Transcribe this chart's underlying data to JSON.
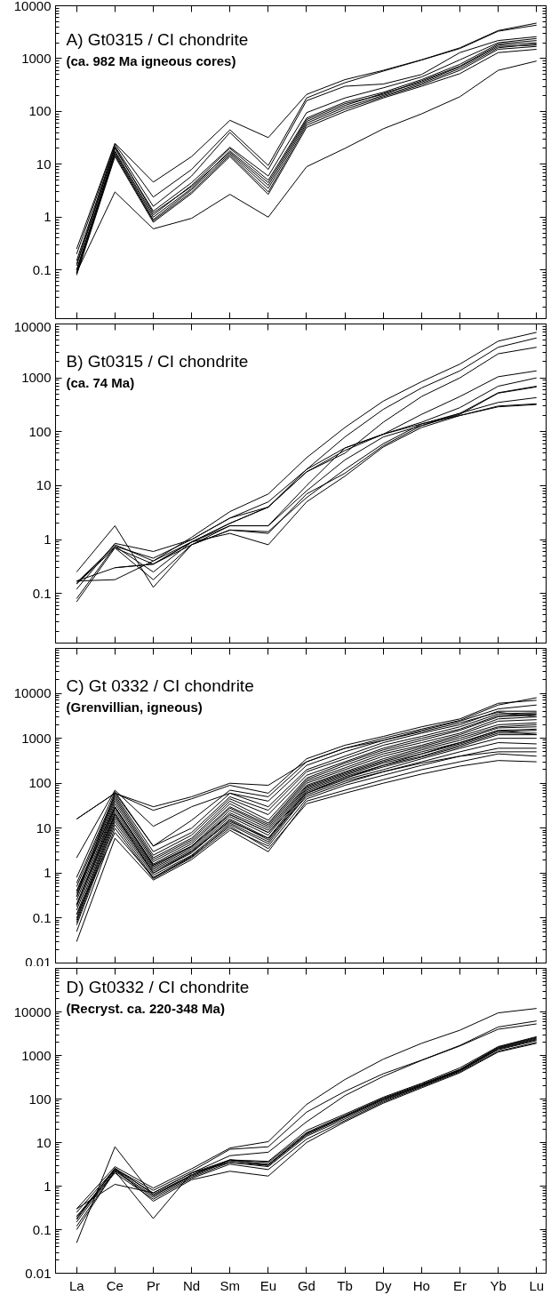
{
  "chart_data": [
    {
      "type": "line",
      "title": "A) Gt0315 / CI chondrite",
      "subtitle": "(ca. 982 Ma igneous cores)",
      "categories": [
        null,
        null,
        null,
        null,
        null,
        null,
        null,
        null,
        null,
        null,
        null,
        null,
        null
      ],
      "log": true,
      "ylim": [
        0.012,
        10000
      ],
      "yticks": [
        0.1,
        1,
        10,
        100,
        1000,
        10000
      ],
      "tick_labels": "y",
      "marker": "none",
      "line_style": "solid",
      "grid": false,
      "series": [
        {
          "color": "#000000",
          "values": [
            0.25,
            25,
            4.6,
            14,
            68,
            32,
            210,
            400,
            600,
            950,
            1600,
            3400,
            4700
          ]
        },
        {
          "color": "#000000",
          "values": [
            0.2,
            24,
            2.4,
            8,
            45,
            9.5,
            180,
            350,
            580,
            940,
            1550,
            3300,
            4300
          ]
        },
        {
          "color": "#000000",
          "values": [
            0.15,
            22,
            1.6,
            6,
            40,
            8,
            160,
            300,
            330,
            500,
            1300,
            2200,
            2600
          ]
        },
        {
          "color": "#000000",
          "values": [
            0.12,
            20,
            1.3,
            4.5,
            21,
            6,
            95,
            180,
            280,
            450,
            950,
            2000,
            2400
          ]
        },
        {
          "color": "#000000",
          "values": [
            0.1,
            18,
            1.1,
            4,
            20,
            5,
            75,
            150,
            230,
            400,
            780,
            1900,
            2200
          ]
        },
        {
          "color": "#000000",
          "values": [
            0.1,
            17,
            1.0,
            3.5,
            18,
            4.5,
            70,
            140,
            210,
            380,
            720,
            1800,
            2000
          ]
        },
        {
          "color": "#000000",
          "values": [
            0.09,
            16,
            0.9,
            3.3,
            16,
            3.5,
            60,
            120,
            200,
            340,
            650,
            1600,
            1900
          ]
        },
        {
          "color": "#000000",
          "values": [
            0.085,
            15,
            0.85,
            3,
            15,
            3,
            55,
            110,
            190,
            320,
            600,
            1500,
            1700
          ]
        },
        {
          "color": "#000000",
          "values": [
            0.08,
            14,
            0.8,
            2.8,
            14,
            2.7,
            50,
            100,
            180,
            300,
            520,
            1300,
            1500
          ]
        },
        {
          "color": "#000000",
          "values": [
            0.13,
            21,
            1.2,
            3.8,
            17,
            4,
            65,
            130,
            220,
            360,
            700,
            1700,
            1800
          ]
        },
        {
          "color": "#000000",
          "values": [
            0.09,
            3,
            0.6,
            0.95,
            2.7,
            1.0,
            9,
            20,
            47,
            90,
            190,
            600,
            900
          ]
        }
      ]
    },
    {
      "type": "line",
      "title": "B) Gt0315 / CI chondrite",
      "subtitle": "(ca. 74 Ma)",
      "categories": [
        null,
        null,
        null,
        null,
        null,
        null,
        null,
        null,
        null,
        null,
        null,
        null,
        null
      ],
      "log": true,
      "ylim": [
        0.012,
        10000
      ],
      "yticks": [
        0.1,
        1,
        10,
        100,
        1000,
        10000
      ],
      "tick_labels": "y",
      "marker": "none",
      "line_style": "solid",
      "grid": false,
      "series": [
        {
          "color": "#000000",
          "values": [
            0.15,
            0.8,
            0.4,
            1.1,
            3.3,
            7,
            33,
            120,
            370,
            850,
            1800,
            4800,
            7000
          ]
        },
        {
          "color": "#000000",
          "values": [
            0.16,
            0.75,
            0.45,
            1.0,
            2.5,
            5,
            20,
            80,
            260,
            650,
            1350,
            3700,
            5500
          ]
        },
        {
          "color": "#000000",
          "values": [
            0.17,
            0.3,
            0.35,
            0.9,
            2.0,
            4,
            18,
            40,
            150,
            450,
            1000,
            2800,
            3700
          ]
        },
        {
          "color": "#000000",
          "values": [
            0.12,
            0.85,
            0.6,
            1.0,
            2.5,
            4,
            20,
            50,
            90,
            210,
            450,
            1050,
            1350
          ]
        },
        {
          "color": "#000000",
          "values": [
            0.15,
            0.7,
            0.35,
            0.9,
            2.0,
            4,
            18,
            45,
            90,
            150,
            280,
            700,
            1000
          ]
        },
        {
          "color": "#000000",
          "values": [
            0.08,
            0.75,
            0.25,
            0.9,
            1.8,
            1.8,
            10,
            50,
            90,
            140,
            220,
            530,
            700
          ]
        },
        {
          "color": "#000000",
          "values": [
            0.07,
            0.7,
            0.18,
            0.8,
            1.8,
            1.8,
            8,
            30,
            80,
            130,
            210,
            520,
            680
          ]
        },
        {
          "color": "#000000",
          "values": [
            0.25,
            1.8,
            0.13,
            0.8,
            1.5,
            1.3,
            7,
            17,
            55,
            130,
            220,
            350,
            430
          ]
        },
        {
          "color": "#000000",
          "values": [
            0.17,
            0.18,
            0.4,
            0.9,
            1.3,
            0.8,
            5,
            15,
            52,
            120,
            200,
            300,
            330
          ]
        },
        {
          "color": "#000000",
          "values": [
            null,
            0.3,
            0.35,
            0.8,
            1.5,
            1.4,
            6,
            20,
            60,
            140,
            200,
            290,
            320
          ]
        }
      ]
    },
    {
      "type": "line",
      "title": "C) Gt 0332 / CI chondrite",
      "subtitle": "(Grenvillian, igneous)",
      "categories": [
        null,
        null,
        null,
        null,
        null,
        null,
        null,
        null,
        null,
        null,
        null,
        null,
        null
      ],
      "log": true,
      "ylim": [
        0.01,
        100000
      ],
      "yticks": [
        0.01,
        0.1,
        1,
        10,
        100,
        1000,
        10000
      ],
      "tick_labels": "y",
      "marker": "none",
      "line_style": "solid",
      "grid": false,
      "series": [
        {
          "color": "#000000",
          "values": [
            16,
            60,
            30,
            50,
            100,
            90,
            300,
            600,
            1000,
            1600,
            2500,
            5500,
            8000
          ]
        },
        {
          "color": "#000000",
          "values": [
            16,
            60,
            25,
            45,
            90,
            60,
            350,
            700,
            1100,
            1800,
            2700,
            6000,
            7000
          ]
        },
        {
          "color": "#000000",
          "values": [
            2.2,
            70,
            11,
            30,
            60,
            40,
            250,
            500,
            900,
            1500,
            2400,
            4500,
            5500
          ]
        },
        {
          "color": "#000000",
          "values": [
            0.8,
            65,
            4,
            10,
            60,
            30,
            200,
            400,
            800,
            1300,
            2000,
            4000,
            4000
          ]
        },
        {
          "color": "#000000",
          "values": [
            0.6,
            55,
            3,
            8,
            50,
            25,
            180,
            350,
            700,
            1100,
            1800,
            3500,
            3700
          ]
        },
        {
          "color": "#000000",
          "values": [
            0.5,
            50,
            2.5,
            7,
            45,
            20,
            150,
            300,
            600,
            1000,
            1600,
            3200,
            3500
          ]
        },
        {
          "color": "#000000",
          "values": [
            0.4,
            45,
            2.2,
            6,
            40,
            15,
            130,
            280,
            550,
            900,
            1500,
            3000,
            3300
          ]
        },
        {
          "color": "#000000",
          "values": [
            0.35,
            40,
            2,
            5.5,
            35,
            13,
            120,
            250,
            500,
            800,
            1300,
            2700,
            3000
          ]
        },
        {
          "color": "#000000",
          "values": [
            0.3,
            35,
            1.8,
            5,
            30,
            12,
            110,
            220,
            450,
            700,
            1200,
            2400,
            2600
          ]
        },
        {
          "color": "#000000",
          "values": [
            0.25,
            30,
            1.6,
            4.5,
            28,
            11,
            100,
            200,
            400,
            650,
            1100,
            2000,
            2200
          ]
        },
        {
          "color": "#000000",
          "values": [
            0.2,
            28,
            1.5,
            4,
            25,
            10,
            90,
            180,
            350,
            600,
            1000,
            1800,
            2000
          ]
        },
        {
          "color": "#000000",
          "values": [
            0.18,
            25,
            1.4,
            3.8,
            22,
            9,
            85,
            170,
            320,
            550,
            900,
            1700,
            1800
          ]
        },
        {
          "color": "#000000",
          "values": [
            0.15,
            22,
            1.3,
            3.5,
            20,
            8,
            80,
            160,
            300,
            500,
            800,
            1500,
            1600
          ]
        },
        {
          "color": "#000000",
          "values": [
            0.12,
            20,
            1.2,
            3.2,
            18,
            7,
            75,
            150,
            280,
            450,
            750,
            1400,
            1500
          ]
        },
        {
          "color": "#000000",
          "values": [
            0.1,
            18,
            1.1,
            3,
            16,
            6,
            70,
            140,
            250,
            400,
            700,
            1300,
            1300
          ]
        },
        {
          "color": "#000000",
          "values": [
            0.09,
            16,
            1,
            2.8,
            15,
            5.5,
            65,
            130,
            230,
            380,
            650,
            1200,
            1200
          ]
        },
        {
          "color": "#000000",
          "values": [
            0.08,
            14,
            0.9,
            2.5,
            13,
            5,
            60,
            120,
            200,
            350,
            600,
            1000,
            1000
          ]
        },
        {
          "color": "#000000",
          "values": [
            0.07,
            12,
            0.8,
            2.3,
            12,
            4.5,
            55,
            110,
            180,
            300,
            500,
            800,
            750
          ]
        },
        {
          "color": "#000000",
          "values": [
            0.05,
            10,
            0.75,
            2.2,
            10,
            4,
            45,
            90,
            150,
            250,
            400,
            600,
            600
          ]
        },
        {
          "color": "#000000",
          "values": [
            0.03,
            6,
            0.7,
            2,
            9,
            3,
            40,
            70,
            120,
            200,
            300,
            450,
            400
          ]
        },
        {
          "color": "#000000",
          "values": [
            0.12,
            8,
            0.8,
            2.4,
            11,
            3.5,
            35,
            60,
            100,
            160,
            240,
            320,
            300
          ]
        },
        {
          "color": "#000000",
          "values": [
            0.2,
            20,
            1,
            3,
            14,
            6,
            50,
            100,
            180,
            280,
            400,
            500,
            500
          ]
        },
        {
          "color": "#000000",
          "values": [
            0.4,
            30,
            1.5,
            4,
            20,
            8,
            60,
            130,
            250,
            450,
            800,
            1500,
            1200
          ]
        },
        {
          "color": "#000000",
          "values": [
            0.3,
            60,
            4,
            15,
            70,
            50,
            300,
            600,
            900,
            1400,
            2200,
            3800,
            3000
          ]
        }
      ]
    },
    {
      "type": "line",
      "title": "D) Gt0332 / CI chondrite",
      "subtitle": "(Recryst. ca. 220-348 Ma)",
      "categories": [
        "La",
        "Ce",
        "Pr",
        "Nd",
        "Sm",
        "Eu",
        "Gd",
        "Tb",
        "Dy",
        "Ho",
        "Er",
        "Yb",
        "Lu"
      ],
      "log": true,
      "ylim": [
        0.01,
        100000
      ],
      "yticks": [
        0.01,
        0.1,
        1,
        10,
        100,
        1000,
        10000
      ],
      "marker": "none",
      "line_style": "solid",
      "grid": false,
      "series": [
        {
          "color": "#000000",
          "values": [
            0.3,
            2.8,
            0.9,
            2.5,
            7.5,
            10.5,
            75,
            280,
            820,
            1900,
            3800,
            9500,
            12000
          ]
        },
        {
          "color": "#000000",
          "values": [
            0.25,
            2.5,
            0.8,
            2.2,
            7,
            8,
            50,
            150,
            380,
            780,
            1700,
            4500,
            6200
          ]
        },
        {
          "color": "#000000",
          "values": [
            0.2,
            2.4,
            0.7,
            2,
            5,
            6,
            30,
            120,
            330,
            770,
            1650,
            4000,
            5300
          ]
        },
        {
          "color": "#000000",
          "values": [
            0.18,
            2.6,
            0.65,
            1.8,
            4,
            3.7,
            19,
            45,
            110,
            230,
            520,
            1600,
            2700
          ]
        },
        {
          "color": "#000000",
          "values": [
            0.15,
            2.3,
            0.6,
            1.7,
            3.8,
            3.2,
            16,
            40,
            100,
            210,
            470,
            1450,
            2400
          ]
        },
        {
          "color": "#000000",
          "values": [
            0.12,
            2.2,
            0.55,
            1.6,
            3.5,
            2.8,
            14,
            35,
            90,
            200,
            440,
            1350,
            2200
          ]
        },
        {
          "color": "#000000",
          "values": [
            0.2,
            2,
            0.5,
            1.5,
            3.2,
            2.4,
            12,
            32,
            85,
            190,
            420,
            1250,
            2000
          ]
        },
        {
          "color": "#000000",
          "values": [
            0.17,
            2.5,
            0.45,
            1.4,
            2.2,
            1.7,
            10,
            30,
            80,
            180,
            400,
            1200,
            1900
          ]
        },
        {
          "color": "#000000",
          "values": [
            0.05,
            8,
            0.6,
            1.8,
            4,
            3,
            15,
            38,
            95,
            200,
            450,
            1400,
            2300
          ]
        },
        {
          "color": "#000000",
          "values": [
            0.3,
            1.1,
            0.7,
            2,
            3.5,
            3,
            16,
            40,
            100,
            210,
            460,
            1500,
            2500
          ]
        },
        {
          "color": "#000000",
          "values": [
            0.1,
            2.2,
            0.18,
            2,
            4,
            3.5,
            17,
            42,
            105,
            220,
            480,
            1550,
            2600
          ]
        }
      ]
    }
  ]
}
